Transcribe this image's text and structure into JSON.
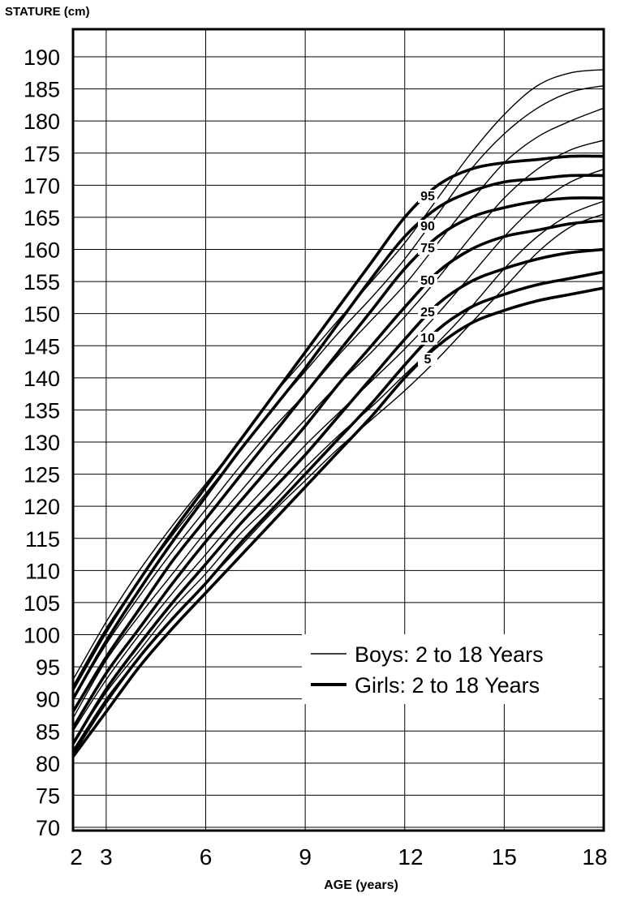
{
  "chart_data": {
    "type": "line",
    "ylabel": "STATURE (cm)",
    "xlabel": "AGE (years)",
    "xlim": [
      2,
      18
    ],
    "ylim": [
      70,
      195
    ],
    "y_ticks": [
      70,
      75,
      80,
      85,
      90,
      95,
      100,
      105,
      110,
      115,
      120,
      125,
      130,
      135,
      140,
      145,
      150,
      155,
      160,
      165,
      170,
      175,
      180,
      185,
      190
    ],
    "x_ticks": [
      2,
      3,
      6,
      9,
      12,
      15,
      18
    ],
    "x_gridlines": [
      3,
      6,
      9,
      12,
      15,
      18
    ],
    "grid": true,
    "legend_position": "bottom-right",
    "legend": [
      {
        "label": "Boys: 2 to 18 Years",
        "style": "thin"
      },
      {
        "label": "Girls: 2 to 18 Years",
        "style": "thick"
      }
    ],
    "percentile_labels": [
      "95",
      "90",
      "75",
      "50",
      "25",
      "10",
      "5"
    ],
    "x": [
      2,
      3,
      4,
      5,
      6,
      7,
      8,
      9,
      10,
      11,
      12,
      13,
      14,
      15,
      16,
      17,
      18
    ],
    "series": [
      {
        "group": "boys",
        "percentile": "95",
        "values": [
          93,
          102,
          110,
          117,
          123.5,
          130,
          137,
          143,
          149,
          155,
          161,
          168,
          175,
          181,
          185.5,
          187.5,
          188
        ]
      },
      {
        "group": "boys",
        "percentile": "90",
        "values": [
          92,
          101,
          108.5,
          115.5,
          122,
          128.5,
          135,
          141,
          147,
          152.5,
          158.5,
          165.5,
          172.5,
          178,
          182,
          184.5,
          185.5
        ]
      },
      {
        "group": "boys",
        "percentile": "75",
        "values": [
          90,
          98.5,
          106,
          113,
          119.5,
          126,
          132,
          137.5,
          143.5,
          149,
          154.5,
          161,
          167.5,
          173.5,
          177.5,
          180,
          182
        ]
      },
      {
        "group": "boys",
        "percentile": "50",
        "values": [
          87,
          96,
          103,
          109.5,
          116,
          122,
          128,
          133.5,
          139,
          144,
          149.5,
          155.5,
          162,
          168,
          172.5,
          175.5,
          177
        ]
      },
      {
        "group": "boys",
        "percentile": "25",
        "values": [
          85,
          93,
          100,
          106.5,
          112.5,
          118.5,
          124,
          129.5,
          134.5,
          139.5,
          144.5,
          150,
          156,
          162,
          167,
          170.5,
          172.5
        ]
      },
      {
        "group": "boys",
        "percentile": "10",
        "values": [
          83,
          91,
          97.5,
          104,
          109.5,
          115.5,
          120.5,
          126,
          131,
          135.5,
          140.5,
          145.5,
          151,
          157,
          162,
          165.5,
          167.5
        ]
      },
      {
        "group": "boys",
        "percentile": "5",
        "values": [
          82,
          90,
          96.5,
          102.5,
          108,
          113.5,
          119,
          124,
          129,
          133.5,
          138,
          143,
          148.5,
          154,
          159.5,
          163.5,
          165.5
        ]
      },
      {
        "group": "girls",
        "percentile": "95",
        "values": [
          91.5,
          100.5,
          108.5,
          116,
          123,
          130,
          137,
          144,
          151,
          158,
          165,
          170,
          172.5,
          173.5,
          174,
          174.5,
          174.5
        ]
      },
      {
        "group": "girls",
        "percentile": "90",
        "values": [
          90,
          99,
          107,
          114.5,
          121.5,
          128.5,
          135,
          141.5,
          148.5,
          155.5,
          162,
          166.5,
          169,
          170.5,
          171,
          171.5,
          171.5
        ]
      },
      {
        "group": "girls",
        "percentile": "75",
        "values": [
          88,
          96.5,
          104,
          111.5,
          118,
          124.5,
          131,
          137.5,
          144,
          150.5,
          157,
          162,
          165,
          166.5,
          167.5,
          168,
          168
        ]
      },
      {
        "group": "girls",
        "percentile": "50",
        "values": [
          85.5,
          94,
          101,
          108,
          114.5,
          120.5,
          126.5,
          132.5,
          139,
          145,
          151,
          156.5,
          160,
          162,
          163,
          164,
          164.5
        ]
      },
      {
        "group": "girls",
        "percentile": "25",
        "values": [
          83,
          91.5,
          98.5,
          105,
          111,
          117,
          122.5,
          128,
          134,
          140,
          146,
          151.5,
          155,
          157,
          158.5,
          159.5,
          160
        ]
      },
      {
        "group": "girls",
        "percentile": "10",
        "values": [
          81.5,
          89.5,
          96.5,
          102.5,
          108,
          114,
          119.5,
          125,
          130.5,
          136,
          142,
          147.5,
          151,
          153,
          154.5,
          155.5,
          156.5
        ]
      },
      {
        "group": "girls",
        "percentile": "5",
        "values": [
          81,
          88,
          95,
          101,
          106.5,
          112,
          117.5,
          123,
          128.5,
          134,
          140,
          145,
          148.5,
          150.5,
          152,
          153,
          154
        ]
      }
    ]
  }
}
